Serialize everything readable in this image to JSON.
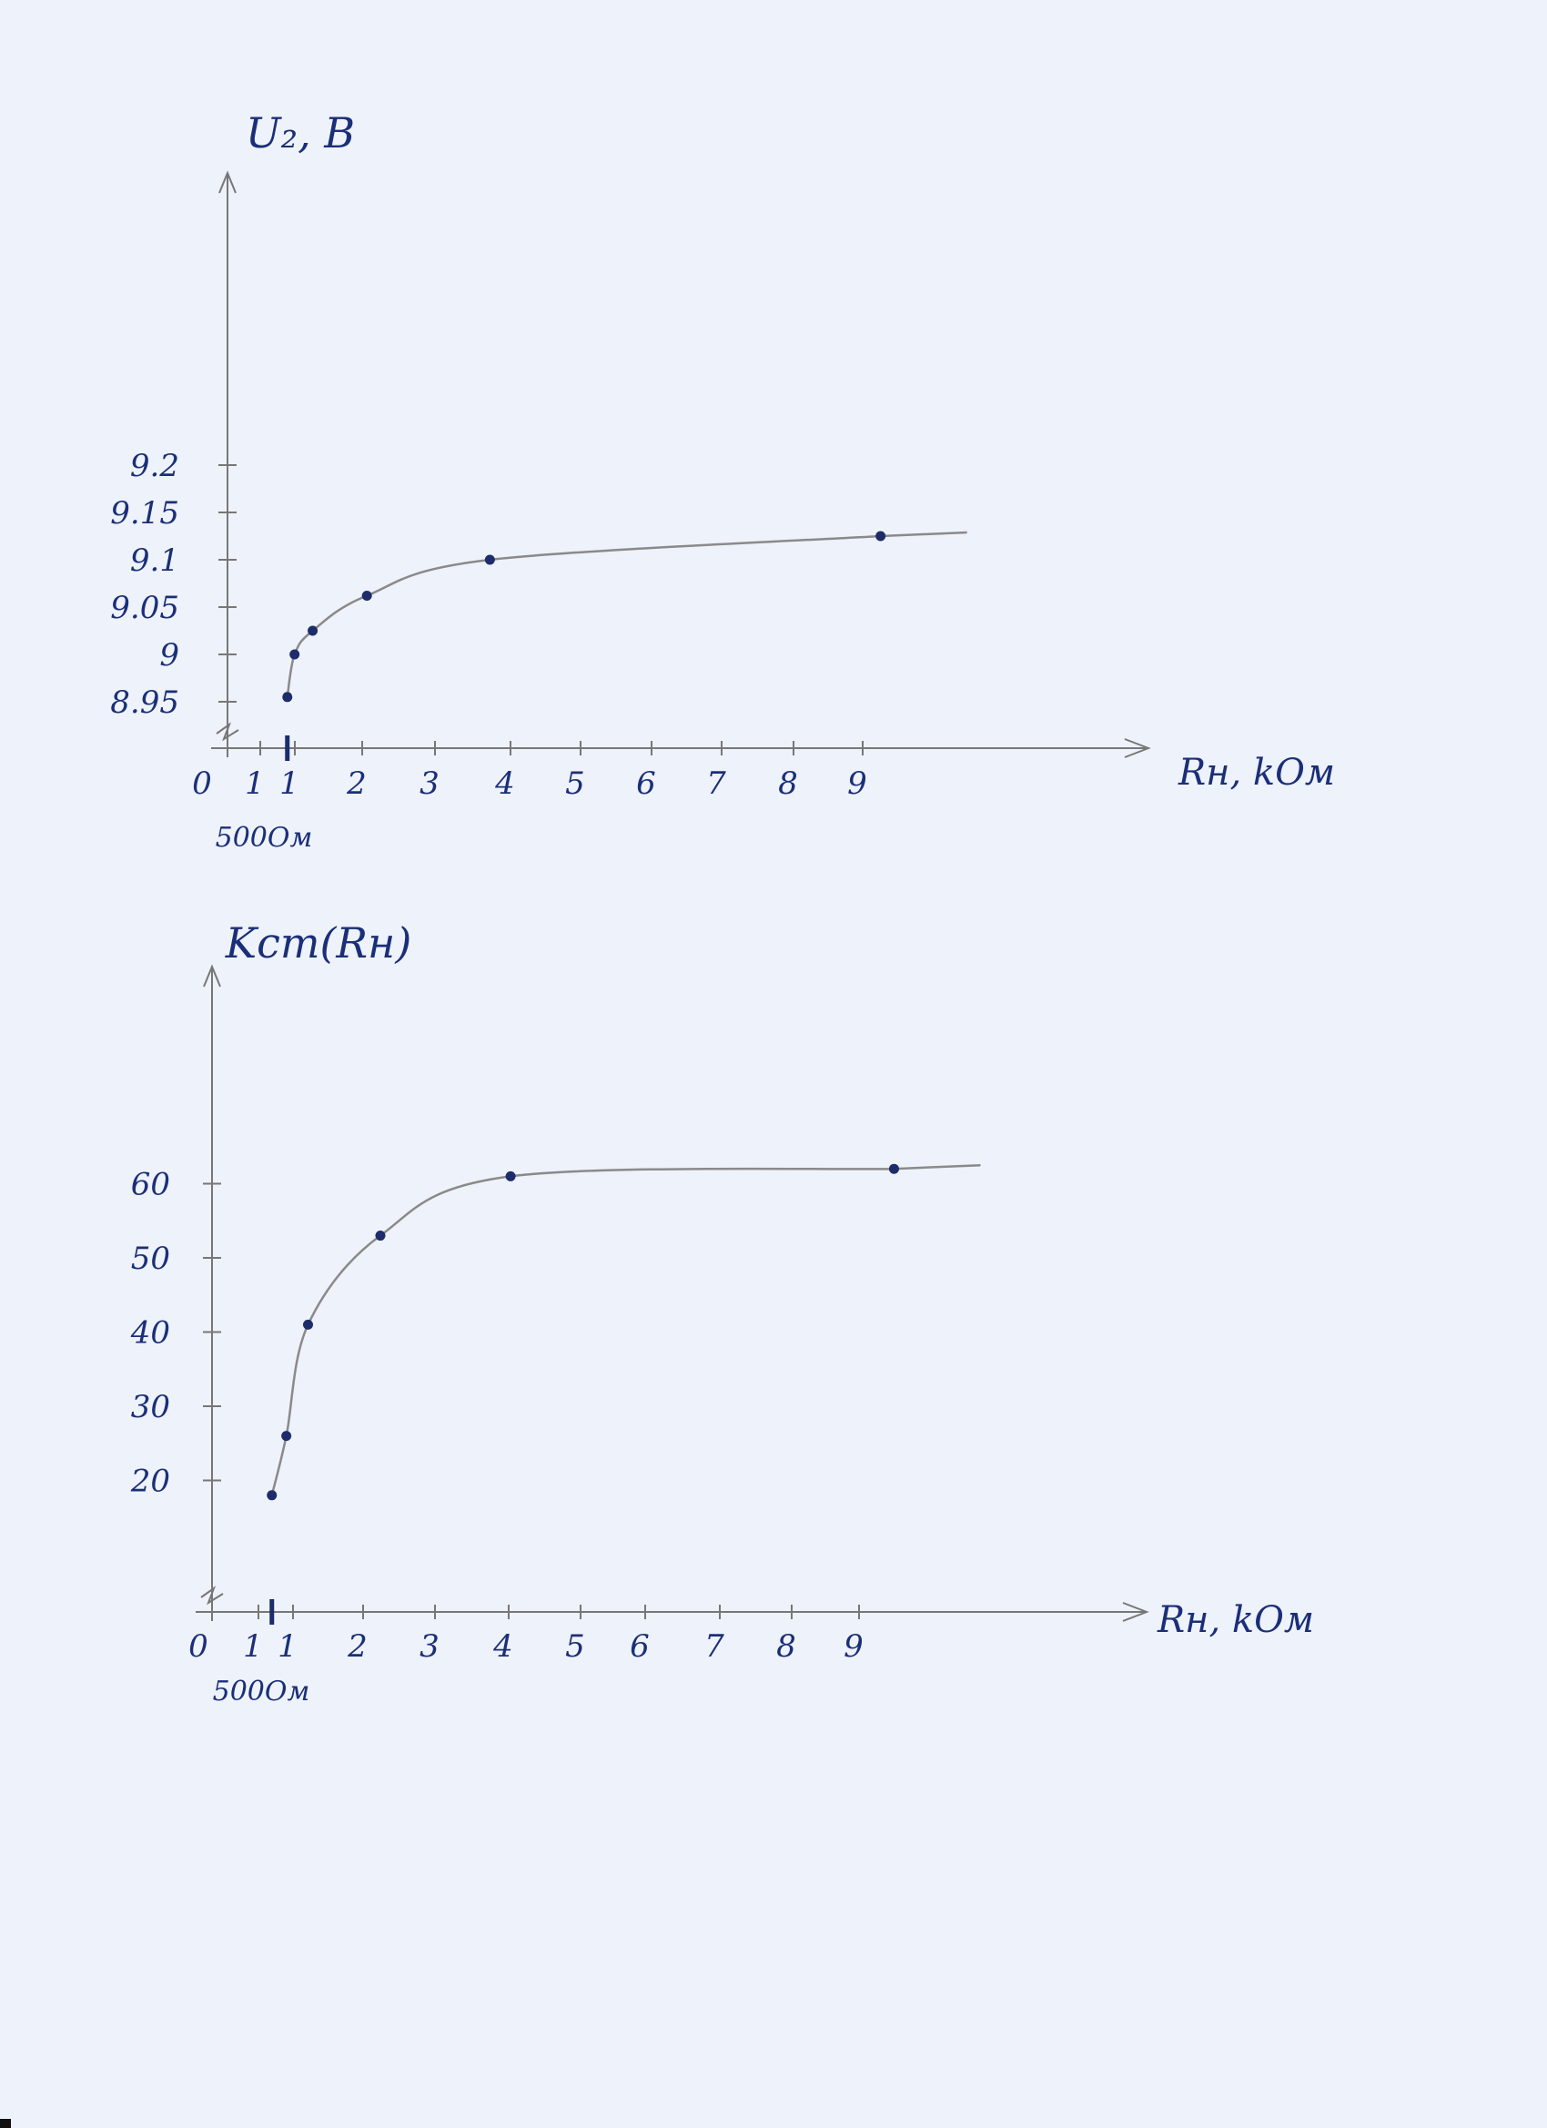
{
  "chart_data": [
    {
      "type": "line",
      "title": "U₂, B",
      "xlabel": "Rн, kОм",
      "ylabel": "U₂, B",
      "x_tick_labels": [
        "0",
        "1",
        "1",
        "2",
        "3",
        "4",
        "5",
        "6",
        "7",
        "8",
        "9"
      ],
      "y_tick_labels": [
        "9.2",
        "9.15",
        "9.1",
        "9.05",
        "9",
        "8.95"
      ],
      "y_ticks": [
        9.2,
        9.15,
        9.1,
        9.05,
        9.0,
        8.95
      ],
      "x_note": "500Ом",
      "xlim": [
        0,
        10.4
      ],
      "ylim": [
        8.9,
        9.25
      ],
      "series": [
        {
          "x": [
            0.5,
            0.6,
            0.85,
            1.6,
            3.3,
            8.7
          ],
          "y": [
            8.955,
            9.0,
            9.025,
            9.062,
            9.1,
            9.125
          ]
        }
      ]
    },
    {
      "type": "line",
      "title": "Kст(Rн)",
      "xlabel": "Rн, kОм",
      "ylabel": "Kст(Rн)",
      "x_tick_labels": [
        "0",
        "1",
        "1",
        "2",
        "3",
        "4",
        "5",
        "6",
        "7",
        "8",
        "9"
      ],
      "y_tick_labels": [
        "60",
        "50",
        "40",
        "30",
        "20"
      ],
      "y_ticks": [
        60,
        50,
        40,
        30,
        20
      ],
      "x_note": "500Ом",
      "xlim": [
        0,
        10.4
      ],
      "ylim": [
        10,
        80
      ],
      "series": [
        {
          "x": [
            0.5,
            0.7,
            1.0,
            2.0,
            3.8,
            9.1
          ],
          "y": [
            18,
            26,
            41,
            53,
            61,
            62
          ]
        }
      ]
    }
  ],
  "page": {
    "corner_color": "#111111",
    "ink_color": "#1b2f78"
  }
}
